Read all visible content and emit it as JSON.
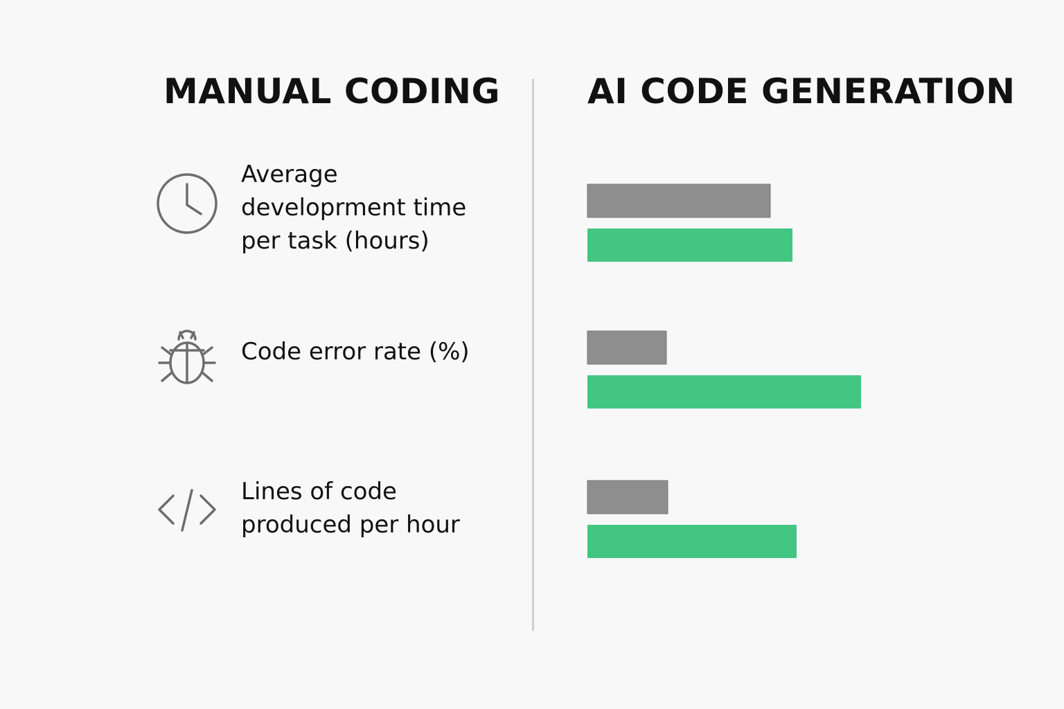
{
  "headings": {
    "left": "MANUAL CODING",
    "right": "AI CODE GENERATION"
  },
  "metrics": [
    {
      "label": "Average developrment time per task (hours)",
      "icon": "clock-icon"
    },
    {
      "label": "Code error rate (%)",
      "icon": "bug-icon"
    },
    {
      "label": "Lines of code produced per hour",
      "icon": "code-icon"
    }
  ],
  "chart_data": {
    "type": "bar",
    "orientation": "horizontal",
    "categories": [
      "Average developrment time per task (hours)",
      "Code error rate (%)",
      "Lines of code produced per hour"
    ],
    "series": [
      {
        "name": "MANUAL CODING",
        "values": [
          264,
          114,
          116
        ],
        "color": "#8e8e8f"
      },
      {
        "name": "AI CODE GENERATION",
        "values": [
          296,
          395,
          302
        ],
        "color": "#43c681"
      }
    ],
    "xlim": [
      0,
      500
    ],
    "grid": false,
    "legend": "top"
  }
}
